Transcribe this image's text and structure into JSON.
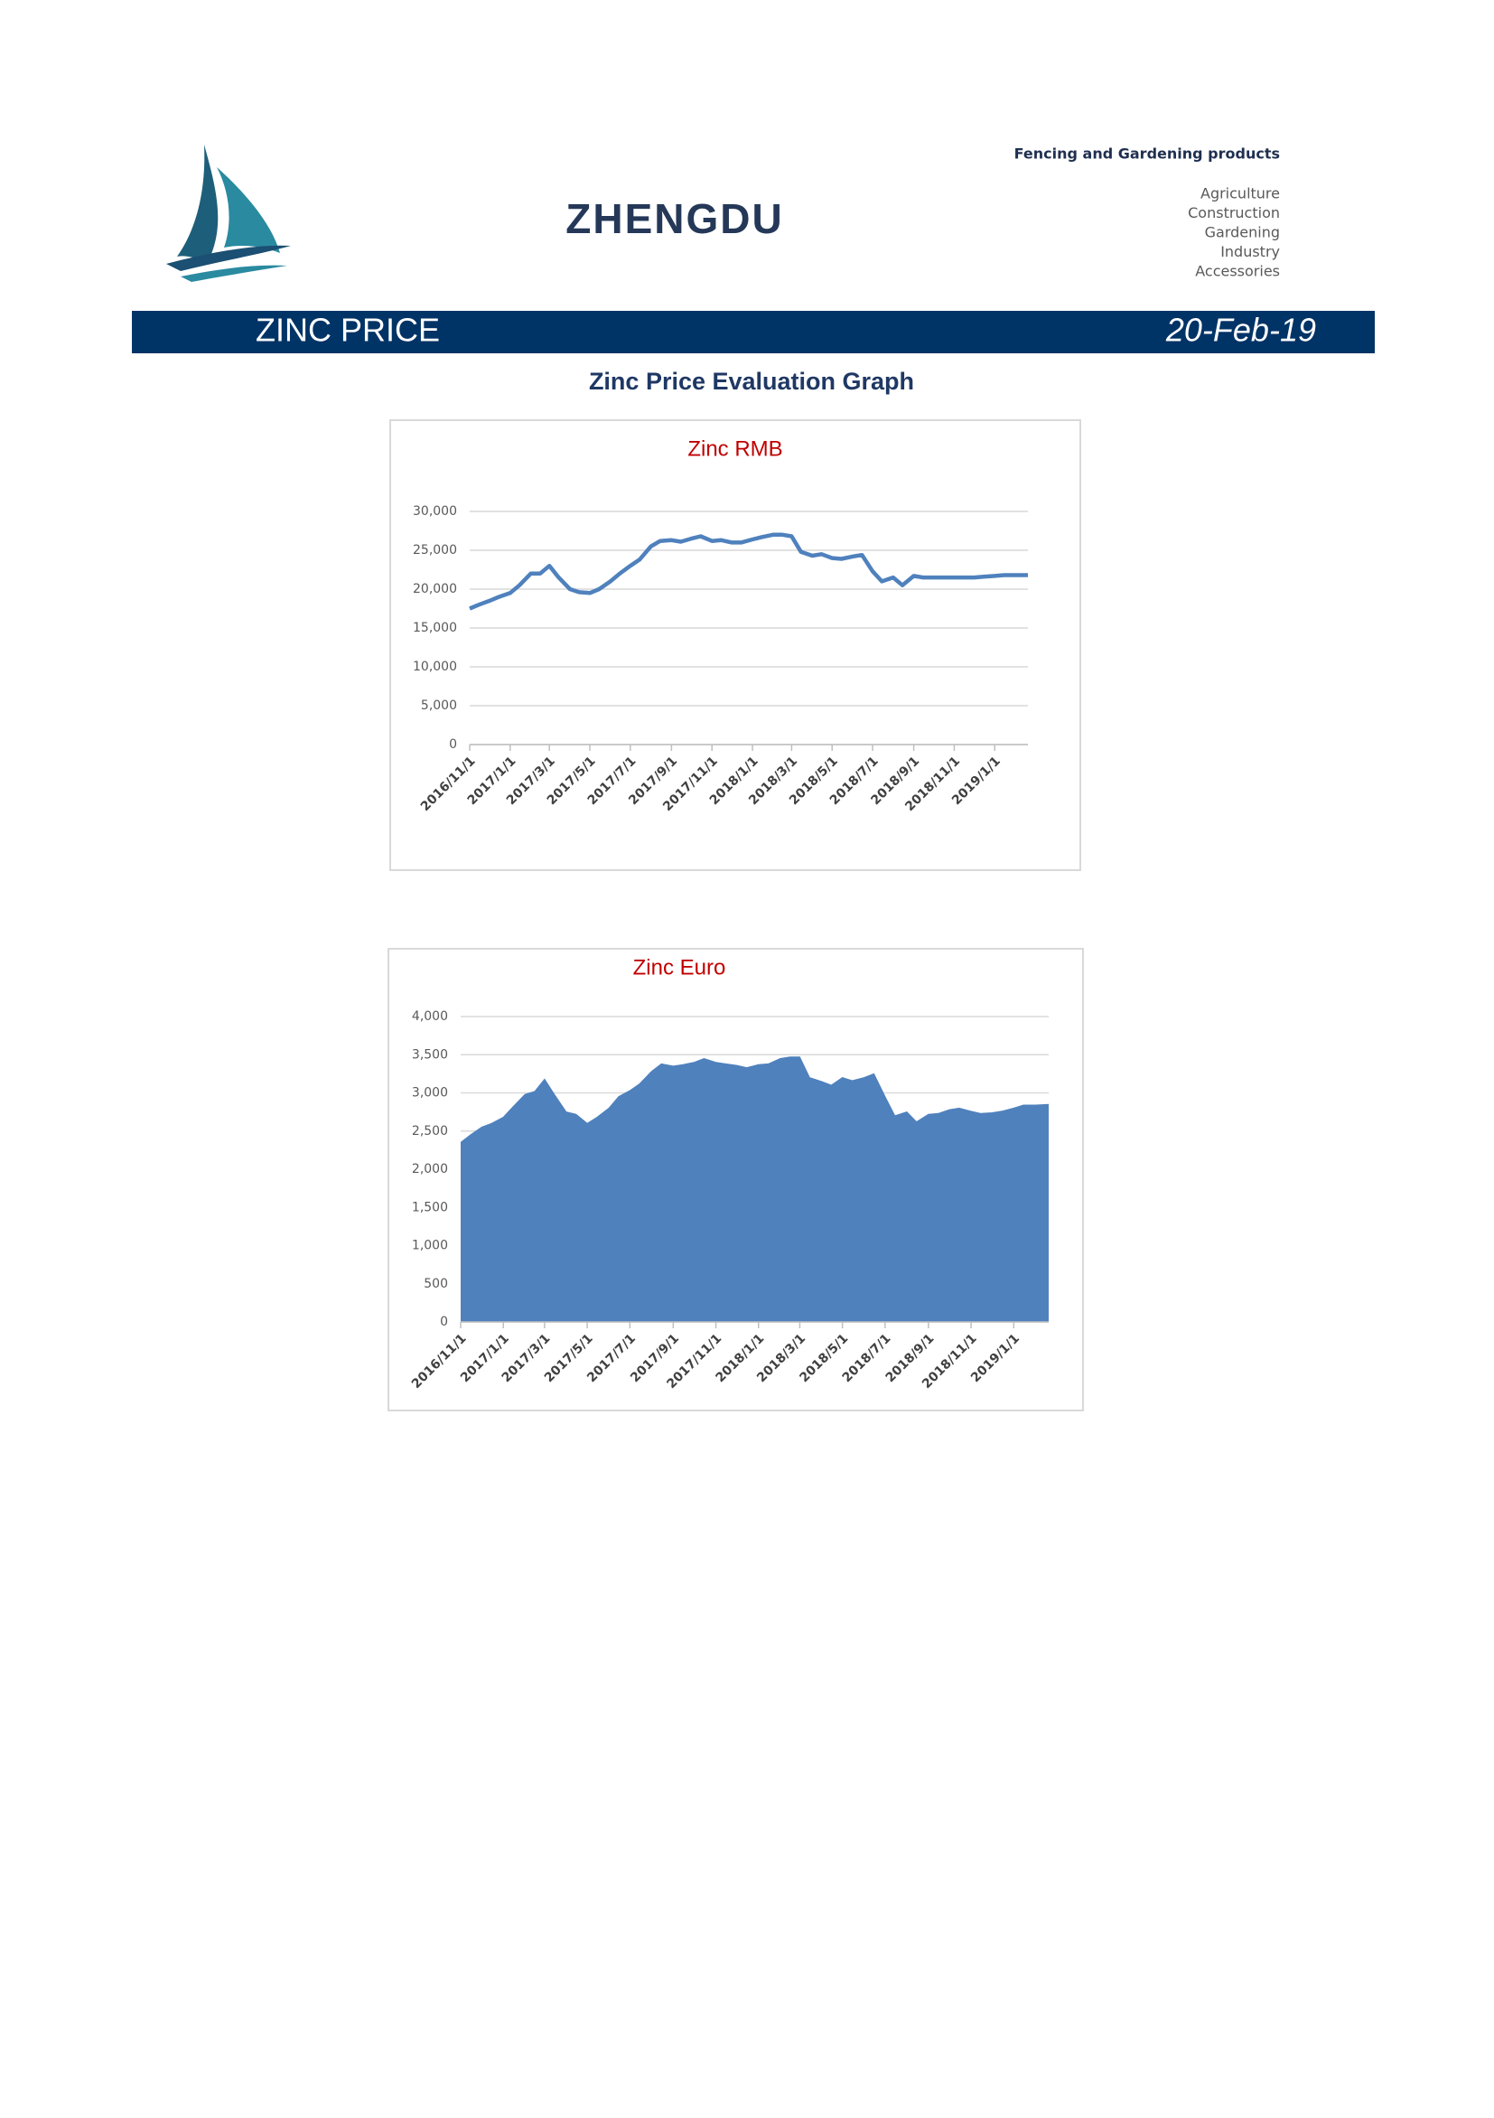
{
  "header": {
    "company": "ZHENGDU",
    "tagline": "Fencing and Gardening products",
    "sectors": [
      "Agriculture",
      "Construction",
      "Gardening",
      "Industry",
      "Accessories"
    ]
  },
  "banner": {
    "title": "ZINC PRICE",
    "date": "20-Feb-19"
  },
  "section_title": "Zinc Price Evaluation Graph",
  "chart_data": [
    {
      "type": "line",
      "title": "Zinc RMB",
      "color": "#4f81bd",
      "grid": true,
      "x": [
        "2016/11/1",
        "2016/11/15",
        "2016/12/1",
        "2016/12/15",
        "2017/1/1",
        "2017/1/15",
        "2017/2/1",
        "2017/2/15",
        "2017/3/1",
        "2017/3/15",
        "2017/4/1",
        "2017/4/15",
        "2017/5/1",
        "2017/5/15",
        "2017/6/1",
        "2017/6/15",
        "2017/7/1",
        "2017/7/15",
        "2017/8/1",
        "2017/8/15",
        "2017/9/1",
        "2017/9/15",
        "2017/10/1",
        "2017/10/15",
        "2017/11/1",
        "2017/11/15",
        "2017/12/1",
        "2017/12/15",
        "2018/1/1",
        "2018/1/15",
        "2018/2/1",
        "2018/2/15",
        "2018/3/1",
        "2018/3/15",
        "2018/4/1",
        "2018/4/15",
        "2018/5/1",
        "2018/5/15",
        "2018/6/1",
        "2018/6/15",
        "2018/7/1",
        "2018/7/15",
        "2018/8/1",
        "2018/8/15",
        "2018/9/1",
        "2018/9/15",
        "2018/10/1",
        "2018/10/15",
        "2018/11/1",
        "2018/11/15",
        "2018/12/1",
        "2018/12/15",
        "2019/1/1",
        "2019/1/15",
        "2019/2/1",
        "2019/2/20"
      ],
      "values": [
        17500,
        18000,
        18500,
        19000,
        19500,
        20500,
        22000,
        22000,
        23000,
        21500,
        20000,
        19600,
        19500,
        20000,
        21000,
        22000,
        23000,
        23800,
        25500,
        26200,
        26300,
        26100,
        26500,
        26800,
        26200,
        26300,
        26000,
        26000,
        26400,
        26700,
        27000,
        27000,
        26800,
        24800,
        24300,
        24500,
        24000,
        23900,
        24200,
        24400,
        22300,
        21000,
        21500,
        20500,
        21700,
        21500,
        21500,
        21500,
        21500,
        21500,
        21500,
        21600,
        21700,
        21800,
        21800,
        21800
      ],
      "xlim": [
        "2016/11/1",
        "2019/2/20"
      ],
      "xticks": [
        "2016/11/1",
        "2017/1/1",
        "2017/3/1",
        "2017/5/1",
        "2017/7/1",
        "2017/9/1",
        "2017/11/1",
        "2018/1/1",
        "2018/3/1",
        "2018/5/1",
        "2018/7/1",
        "2018/9/1",
        "2018/11/1",
        "2019/1/1"
      ],
      "ylim": [
        0,
        30000
      ],
      "yticks": [
        0,
        {
          "value": 5000,
          "label": "5,000"
        },
        {
          "value": 10000,
          "label": "10,000"
        },
        {
          "value": 15000,
          "label": "15,000"
        },
        {
          "value": 20000,
          "label": "20,000"
        },
        {
          "value": 25000,
          "label": "25,000"
        },
        {
          "value": 30000,
          "label": "30,000"
        }
      ]
    },
    {
      "type": "area",
      "title": "Zinc Euro",
      "color": "#4f81bd",
      "grid": true,
      "x": [
        "2016/11/1",
        "2016/11/15",
        "2016/12/1",
        "2016/12/15",
        "2017/1/1",
        "2017/1/15",
        "2017/2/1",
        "2017/2/15",
        "2017/3/1",
        "2017/3/15",
        "2017/4/1",
        "2017/4/15",
        "2017/5/1",
        "2017/5/15",
        "2017/6/1",
        "2017/6/15",
        "2017/7/1",
        "2017/7/15",
        "2017/8/1",
        "2017/8/15",
        "2017/9/1",
        "2017/9/15",
        "2017/10/1",
        "2017/10/15",
        "2017/11/1",
        "2017/11/15",
        "2017/12/1",
        "2017/12/15",
        "2018/1/1",
        "2018/1/15",
        "2018/2/1",
        "2018/2/15",
        "2018/3/1",
        "2018/3/15",
        "2018/4/1",
        "2018/4/15",
        "2018/5/1",
        "2018/5/15",
        "2018/6/1",
        "2018/6/15",
        "2018/7/1",
        "2018/7/15",
        "2018/8/1",
        "2018/8/15",
        "2018/9/1",
        "2018/9/15",
        "2018/10/1",
        "2018/10/15",
        "2018/11/1",
        "2018/11/15",
        "2018/12/1",
        "2018/12/15",
        "2019/1/1",
        "2019/1/15",
        "2019/2/1",
        "2019/2/20"
      ],
      "values": [
        2350,
        2450,
        2550,
        2600,
        2680,
        2820,
        2980,
        3020,
        3180,
        2980,
        2750,
        2720,
        2600,
        2680,
        2800,
        2950,
        3030,
        3120,
        3280,
        3380,
        3350,
        3370,
        3400,
        3450,
        3400,
        3380,
        3360,
        3330,
        3370,
        3380,
        3450,
        3470,
        3470,
        3200,
        3150,
        3100,
        3200,
        3160,
        3200,
        3250,
        2950,
        2700,
        2750,
        2620,
        2720,
        2730,
        2780,
        2800,
        2760,
        2730,
        2740,
        2760,
        2800,
        2840,
        2840,
        2850
      ],
      "xlim": [
        "2016/11/1",
        "2019/2/20"
      ],
      "xticks": [
        "2016/11/1",
        "2017/1/1",
        "2017/3/1",
        "2017/5/1",
        "2017/7/1",
        "2017/9/1",
        "2017/11/1",
        "2018/1/1",
        "2018/3/1",
        "2018/5/1",
        "2018/7/1",
        "2018/9/1",
        "2018/11/1",
        "2019/1/1"
      ],
      "ylim": [
        0,
        4000
      ],
      "yticks": [
        0,
        500,
        {
          "value": 1000,
          "label": "1,000"
        },
        {
          "value": 1500,
          "label": "1,500"
        },
        {
          "value": 2000,
          "label": "2,000"
        },
        {
          "value": 2500,
          "label": "2,500"
        },
        {
          "value": 3000,
          "label": "3,000"
        },
        {
          "value": 3500,
          "label": "3,500"
        },
        {
          "value": 4000,
          "label": "4,000"
        }
      ]
    }
  ]
}
